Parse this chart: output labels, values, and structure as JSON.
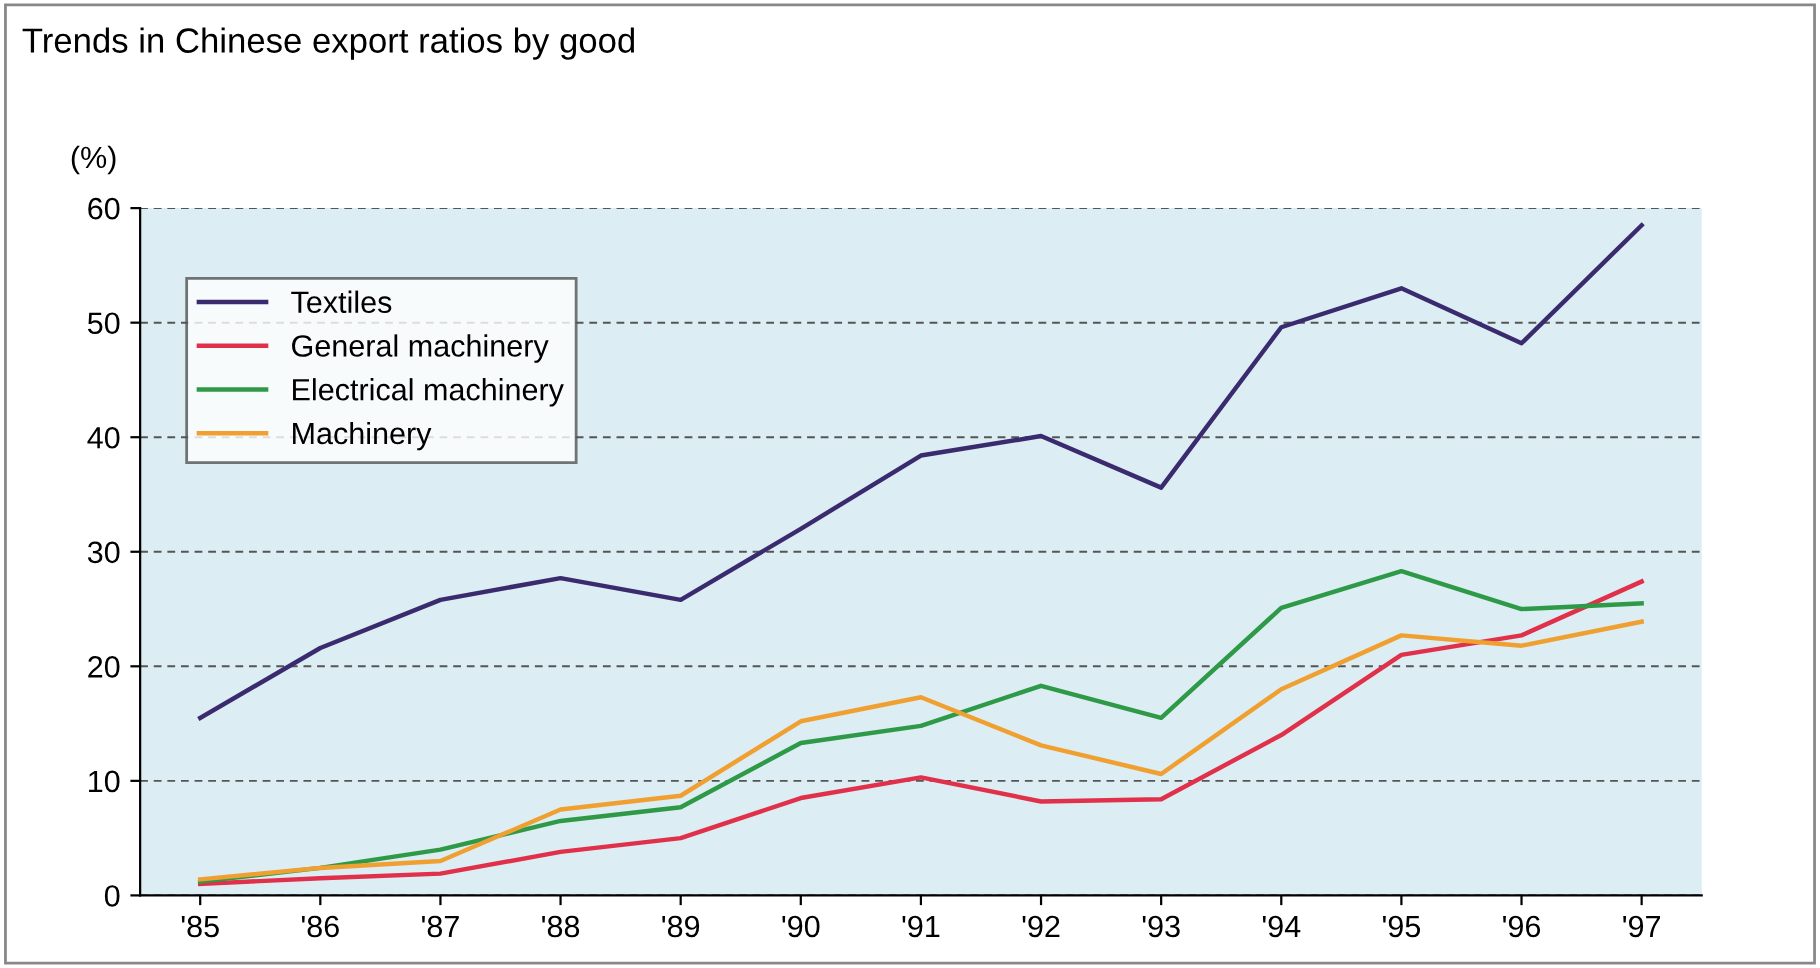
{
  "chart_data": {
    "type": "line",
    "title": "Trends in Chinese export ratios by good",
    "ylabel": "(%)",
    "categories": [
      "'85",
      "'86",
      "'87",
      "'88",
      "'89",
      "'90",
      "'91",
      "'92",
      "'93",
      "'94",
      "'95",
      "'96",
      "'97"
    ],
    "series": [
      {
        "name": "Textiles",
        "color": "#3a2a6e",
        "values": [
          15.5,
          21.6,
          25.8,
          27.7,
          25.8,
          32,
          38.4,
          40.1,
          35.6,
          49.6,
          53,
          48.2,
          58.5
        ]
      },
      {
        "name": "General machinery",
        "color": "#e0304a",
        "values": [
          1.0,
          1.5,
          1.9,
          3.8,
          5,
          8.5,
          10.3,
          8.2,
          8.4,
          14,
          21,
          22.7,
          27.4
        ]
      },
      {
        "name": "Electrical machinery",
        "color": "#2e9a48",
        "values": [
          1.2,
          2.4,
          4,
          6.5,
          7.7,
          13.3,
          14.8,
          18.3,
          15.5,
          25.1,
          28.3,
          25,
          25.5
        ]
      },
      {
        "name": "Machinery",
        "color": "#f0a030",
        "values": [
          1.4,
          2.4,
          3,
          7.5,
          8.7,
          15.2,
          17.3,
          13.1,
          10.6,
          18,
          22.7,
          21.8,
          23.9
        ]
      }
    ],
    "ylim": [
      0,
      60
    ],
    "yticks": [
      0,
      10,
      20,
      30,
      40,
      50,
      60
    ],
    "grid": "y",
    "legend": "top left",
    "line_style": "solid",
    "marker": "none"
  }
}
